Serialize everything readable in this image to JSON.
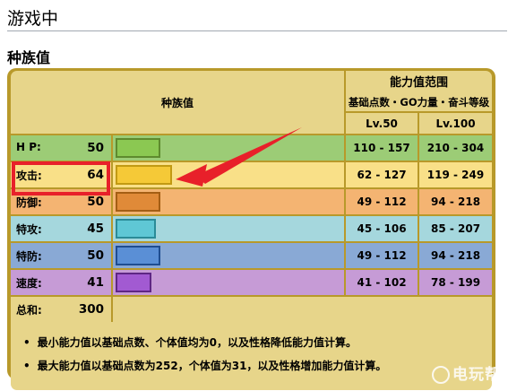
{
  "section_title": "游戏中",
  "sub_title": "种族值",
  "table": {
    "head_main": "种族值",
    "head_range_line1": "能力值范围",
    "head_range_line2": "基础点数・GO力量・奋斗等级",
    "lv50": "Lv.50",
    "lv100": "Lv.100"
  },
  "stats": [
    {
      "name": "H P:",
      "value": "50",
      "bar_fraction": 0.2,
      "lv50": "110 - 157",
      "lv100": "210 - 304",
      "row_color": "#9ccc76",
      "bar_color": "#8bc852",
      "bar_border": "#5e8a2e"
    },
    {
      "name": "攻击:",
      "value": "64",
      "bar_fraction": 0.25,
      "lv50": "62 - 127",
      "lv100": "119 - 249",
      "row_color": "#f9e088",
      "bar_color": "#f5c937",
      "bar_border": "#c29a13"
    },
    {
      "name": "防御:",
      "value": "50",
      "bar_fraction": 0.2,
      "lv50": "49 - 112",
      "lv100": "94 - 218",
      "row_color": "#f4b472",
      "bar_color": "#e08a38",
      "bar_border": "#a45e14"
    },
    {
      "name": "特攻:",
      "value": "45",
      "bar_fraction": 0.18,
      "lv50": "45 - 106",
      "lv100": "85 - 207",
      "row_color": "#a5d7dd",
      "bar_color": "#5fc7d5",
      "bar_border": "#2b8b97"
    },
    {
      "name": "特防:",
      "value": "50",
      "bar_fraction": 0.2,
      "lv50": "49 - 112",
      "lv100": "94 - 218",
      "row_color": "#89a9d5",
      "bar_color": "#5a8fd6",
      "bar_border": "#1f4d90"
    },
    {
      "name": "速度:",
      "value": "41",
      "bar_fraction": 0.16,
      "lv50": "41 - 102",
      "lv100": "78 - 199",
      "row_color": "#c69bd6",
      "bar_color": "#a25ad2",
      "bar_border": "#5e2684"
    }
  ],
  "total": {
    "name": "总和:",
    "value": "300"
  },
  "notes": [
    "最小能力值以基础点数、个体值均为0，以及性格降低能力值计算。",
    "最大能力值以基础点数为252，个体值为31，以及性格增加能力值计算。"
  ],
  "watermark": "电玩帮",
  "colors": {
    "highlight": "#e8202a",
    "frame": "#b8992a",
    "header_bg": "#e7d58a"
  }
}
